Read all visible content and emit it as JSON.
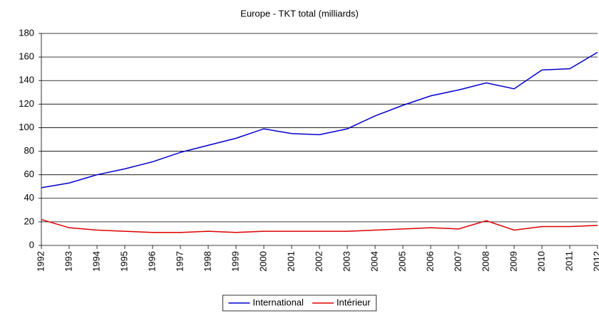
{
  "chart_data": {
    "type": "line",
    "title": "Europe - TKT total (milliards)",
    "x": [
      1992,
      1993,
      1994,
      1995,
      1996,
      1997,
      1998,
      1999,
      2000,
      2001,
      2002,
      2003,
      2004,
      2005,
      2006,
      2007,
      2008,
      2009,
      2010,
      2011,
      2012
    ],
    "xlim": [
      1992,
      2012
    ],
    "xticks": [
      1992,
      1993,
      1994,
      1995,
      1996,
      1997,
      1998,
      1999,
      2000,
      2001,
      2002,
      2003,
      2004,
      2005,
      2006,
      2007,
      2008,
      2009,
      2010,
      2011,
      2012
    ],
    "ylim": [
      0,
      180
    ],
    "yticks": [
      0,
      20,
      40,
      60,
      80,
      100,
      120,
      140,
      160,
      180
    ],
    "grid": true,
    "legend": "bottom",
    "series": [
      {
        "name": "International",
        "color": "#0000cc",
        "values": [
          49,
          53,
          60,
          65,
          71,
          79,
          85,
          91,
          99,
          95,
          94,
          99,
          110,
          119,
          127,
          132,
          138,
          133,
          149,
          150,
          164
        ]
      },
      {
        "name": "Intérieur",
        "color": "#dd0000",
        "values": [
          22,
          15,
          13,
          12,
          11,
          11,
          12,
          11,
          12,
          12,
          12,
          12,
          13,
          14,
          15,
          14,
          21,
          13,
          16,
          16,
          17
        ]
      }
    ]
  }
}
